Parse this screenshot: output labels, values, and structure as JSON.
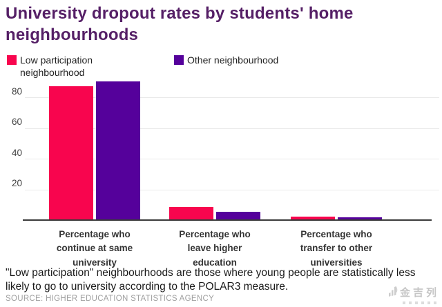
{
  "title": "University dropout rates by students' home neighbourhoods",
  "legend": {
    "items": [
      {
        "label": "Low participation\nneighbourhood",
        "color": "#f8054e"
      },
      {
        "label": "Other neighbourhood",
        "color": "#55019b"
      }
    ]
  },
  "chart_data": {
    "type": "bar",
    "title": "University dropout rates by students' home neighbourhoods",
    "categories": [
      "Percentage who\ncontinue at same\nuniversity",
      "Percentage who\nleave higher\neducation",
      "Percentage who\ntransfer to other\nuniversities"
    ],
    "series": [
      {
        "name": "Low participation neighbourhood",
        "color": "#f8054e",
        "values": [
          88,
          9,
          2.5
        ]
      },
      {
        "name": "Other neighbourhood",
        "color": "#55019b",
        "values": [
          91,
          6,
          2.2
        ]
      }
    ],
    "yticks": [
      20,
      40,
      60,
      80
    ],
    "ylim": [
      0,
      100
    ],
    "xlabel": "",
    "ylabel": "",
    "grid": true,
    "legend_position": "top"
  },
  "footnote": "\"Low participation\" neighbourhoods are those where young people are statistically less likely to go to university according to the POLAR3 measure.",
  "source": "SOURCE: HIGHER EDUCATION STATISTICS AGENCY",
  "watermark": {
    "text": "金吉列"
  },
  "colors": {
    "title": "#551f66",
    "bar_low_participation": "#f8054e",
    "bar_other": "#55019b",
    "axis": "#3a3a3a",
    "grid": "#e9e9e9",
    "source_text": "#a0a0a0"
  }
}
